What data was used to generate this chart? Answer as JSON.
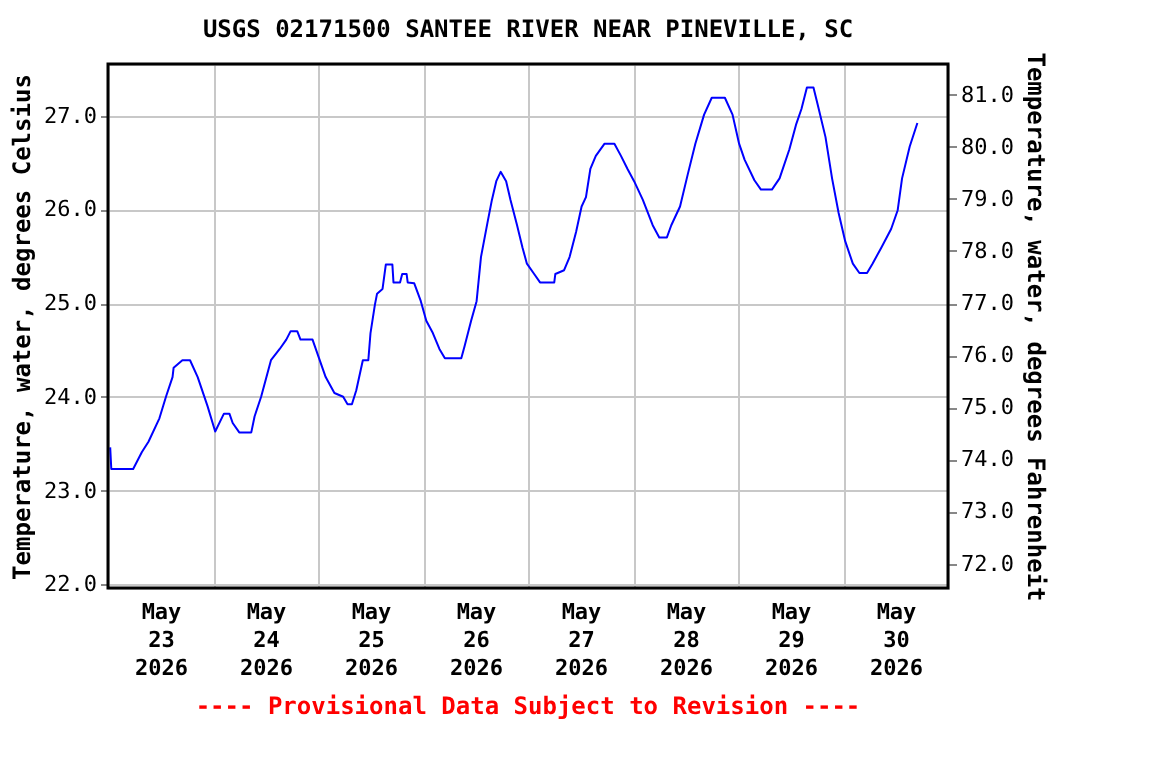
{
  "chart_data": {
    "type": "line",
    "title": "USGS 02171500 SANTEE RIVER NEAR PINEVILLE, SC",
    "ylabel": "Temperature, water, degrees Celsius",
    "y2label": "Temperature, water, degrees Fahrenheit",
    "annotations": [
      "---- Provisional Data Subject to Revision ----"
    ],
    "x": [
      "2026-05-23T00:30",
      "2026-05-23T00:45",
      "2026-05-23T05:45",
      "2026-05-23T07:45",
      "2026-05-23T09:15",
      "2026-05-23T11:45",
      "2026-05-23T13:15",
      "2026-05-23T14:45",
      "2026-05-23T15:00",
      "2026-05-23T17:00",
      "2026-05-23T18:45",
      "2026-05-23T20:30",
      "2026-05-23T22:45",
      "2026-05-24T00:30",
      "2026-05-24T02:30",
      "2026-05-24T03:45",
      "2026-05-24T04:30",
      "2026-05-24T06:00",
      "2026-05-24T08:45",
      "2026-05-24T09:30",
      "2026-05-24T11:00",
      "2026-05-24T13:15",
      "2026-05-24T15:15",
      "2026-05-24T16:45",
      "2026-05-24T17:45",
      "2026-05-24T19:15",
      "2026-05-24T20:00",
      "2026-05-24T22:45",
      "2026-05-25T00:15",
      "2026-05-25T01:45",
      "2026-05-25T03:45",
      "2026-05-25T05:45",
      "2026-05-25T06:45",
      "2026-05-25T07:45",
      "2026-05-25T08:45",
      "2026-05-25T10:15",
      "2026-05-25T11:30",
      "2026-05-25T12:00",
      "2026-05-25T13:00",
      "2026-05-25T13:30",
      "2026-05-25T14:45",
      "2026-05-25T15:30",
      "2026-05-25T17:00",
      "2026-05-25T17:15",
      "2026-05-25T18:45",
      "2026-05-25T19:15",
      "2026-05-25T20:15",
      "2026-05-25T20:30",
      "2026-05-25T22:00",
      "2026-05-25T23:30",
      "2026-05-26T00:45",
      "2026-05-26T02:15",
      "2026-05-26T03:45",
      "2026-05-26T05:00",
      "2026-05-26T08:45",
      "2026-05-26T09:30",
      "2026-05-26T11:00",
      "2026-05-26T12:15",
      "2026-05-26T13:15",
      "2026-05-26T14:45",
      "2026-05-26T15:45",
      "2026-05-26T16:45",
      "2026-05-26T17:45",
      "2026-05-26T19:00",
      "2026-05-26T20:00",
      "2026-05-26T21:30",
      "2026-05-26T22:45",
      "2026-05-26T23:45",
      "2026-05-27T01:15",
      "2026-05-27T02:45",
      "2026-05-27T06:00",
      "2026-05-27T06:15",
      "2026-05-27T08:15",
      "2026-05-27T09:30",
      "2026-05-27T11:00",
      "2026-05-27T12:15",
      "2026-05-27T13:15",
      "2026-05-27T14:15",
      "2026-05-27T15:30",
      "2026-05-27T17:30",
      "2026-05-27T19:45",
      "2026-05-27T21:15",
      "2026-05-27T22:45",
      "2026-05-28T00:15",
      "2026-05-28T02:15",
      "2026-05-28T04:30",
      "2026-05-28T06:00",
      "2026-05-28T07:45",
      "2026-05-28T08:45",
      "2026-05-28T10:45",
      "2026-05-28T12:30",
      "2026-05-28T14:15",
      "2026-05-28T16:15",
      "2026-05-28T18:00",
      "2026-05-28T21:00",
      "2026-05-28T22:45",
      "2026-05-29T00:15",
      "2026-05-29T01:30",
      "2026-05-29T03:45",
      "2026-05-29T05:15",
      "2026-05-29T07:45",
      "2026-05-29T09:30",
      "2026-05-29T11:45",
      "2026-05-29T13:15",
      "2026-05-29T14:30",
      "2026-05-29T15:45",
      "2026-05-29T17:15",
      "2026-05-29T18:15",
      "2026-05-29T20:00",
      "2026-05-29T21:30",
      "2026-05-29T23:00",
      "2026-05-30T00:30",
      "2026-05-30T02:15",
      "2026-05-30T03:45",
      "2026-05-30T05:30",
      "2026-05-30T06:45",
      "2026-05-30T08:45",
      "2026-05-30T11:00",
      "2026-05-30T12:30",
      "2026-05-30T13:30",
      "2026-05-30T15:15",
      "2026-05-30T17:00"
    ],
    "series": [
      {
        "color": "#0000ff",
        "values": [
          23.46,
          23.23,
          23.23,
          23.41,
          23.52,
          23.77,
          24.0,
          24.21,
          24.31,
          24.39,
          24.39,
          24.21,
          23.9,
          23.63,
          23.82,
          23.82,
          23.72,
          23.62,
          23.62,
          23.79,
          24.0,
          24.39,
          24.51,
          24.61,
          24.7,
          24.7,
          24.61,
          24.61,
          24.41,
          24.21,
          24.04,
          24.0,
          23.92,
          23.92,
          24.07,
          24.39,
          24.39,
          24.68,
          24.98,
          25.1,
          25.15,
          25.41,
          25.41,
          25.22,
          25.22,
          25.31,
          25.31,
          25.22,
          25.21,
          25.02,
          24.81,
          24.68,
          24.51,
          24.41,
          24.41,
          24.54,
          24.81,
          25.02,
          25.49,
          25.86,
          26.1,
          26.3,
          26.4,
          26.3,
          26.1,
          25.83,
          25.59,
          25.42,
          25.32,
          25.22,
          25.22,
          25.31,
          25.35,
          25.49,
          25.76,
          26.03,
          26.13,
          26.43,
          26.57,
          26.7,
          26.7,
          26.57,
          26.43,
          26.3,
          26.1,
          25.83,
          25.7,
          25.7,
          25.83,
          26.03,
          26.37,
          26.7,
          27.01,
          27.19,
          27.19,
          27.01,
          26.7,
          26.53,
          26.31,
          26.21,
          26.21,
          26.33,
          26.64,
          26.9,
          27.07,
          27.3,
          27.3,
          27.11,
          26.77,
          26.33,
          25.96,
          25.66,
          25.42,
          25.32,
          25.32,
          25.42,
          25.59,
          25.79,
          25.99,
          26.33,
          26.67,
          26.92
        ]
      }
    ],
    "xlim": [
      "2026-05-23T00:00",
      "2026-05-31T00:00"
    ],
    "xticks": [
      {
        "value": "2026-05-23T12:00",
        "label": "May 23 2026"
      },
      {
        "value": "2026-05-24T00:00",
        "label": null
      },
      {
        "value": "2026-05-24T12:00",
        "label": "May 24 2026"
      },
      {
        "value": "2026-05-25T00:00",
        "label": null
      },
      {
        "value": "2026-05-25T12:00",
        "label": "May 25 2026"
      },
      {
        "value": "2026-05-26T00:00",
        "label": null
      },
      {
        "value": "2026-05-26T12:00",
        "label": "May 26 2026"
      },
      {
        "value": "2026-05-27T00:00",
        "label": null
      },
      {
        "value": "2026-05-27T12:00",
        "label": "May 27 2026"
      },
      {
        "value": "2026-05-28T00:00",
        "label": null
      },
      {
        "value": "2026-05-28T12:00",
        "label": "May 28 2026"
      },
      {
        "value": "2026-05-29T00:00",
        "label": null
      },
      {
        "value": "2026-05-29T12:00",
        "label": "May 29 2026"
      },
      {
        "value": "2026-05-30T00:00",
        "label": null
      },
      {
        "value": "2026-05-30T12:00",
        "label": "May 30 2026"
      }
    ],
    "ylim": [
      21.96,
      27.55
    ],
    "yticks": [
      {
        "value": 22,
        "label": "22.0"
      },
      {
        "value": 23,
        "label": "23.0"
      },
      {
        "value": 24,
        "label": "24.0"
      },
      {
        "value": 25,
        "label": "25.0"
      },
      {
        "value": 26,
        "label": "26.0"
      },
      {
        "value": 27,
        "label": "27.0"
      }
    ],
    "y2lim": [
      71.53,
      81.59
    ],
    "y2ticks": [
      {
        "value": 72,
        "label": "72.0"
      },
      {
        "value": 73,
        "label": "73.0"
      },
      {
        "value": 74,
        "label": "74.0"
      },
      {
        "value": 75,
        "label": "75.0"
      },
      {
        "value": 76,
        "label": "76.0"
      },
      {
        "value": 77,
        "label": "77.0"
      },
      {
        "value": 78,
        "label": "78.0"
      },
      {
        "value": 79,
        "label": "79.0"
      },
      {
        "value": 80,
        "label": "80.0"
      },
      {
        "value": 81,
        "label": "81.0"
      }
    ],
    "grid": true
  }
}
